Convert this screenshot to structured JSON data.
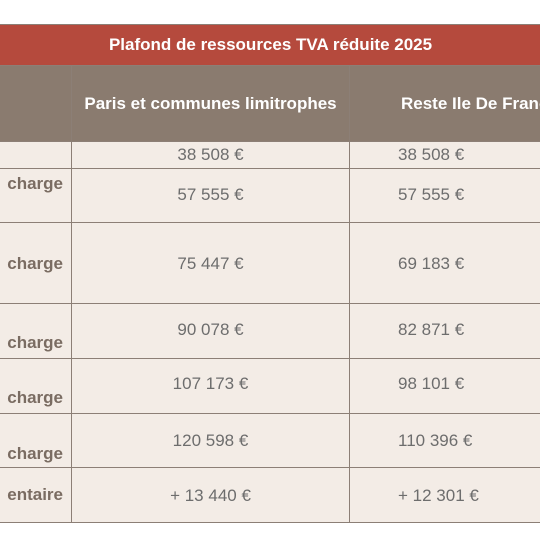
{
  "table": {
    "title": "Plafond de ressources TVA réduite 2025",
    "headers": [
      "",
      "Paris et communes limitrophes",
      "Reste Ile De France"
    ],
    "rows": [
      {
        "label": "",
        "paris": "38 508 €",
        "reste": "38 508 €"
      },
      {
        "label": "charge",
        "paris": "57 555 €",
        "reste": "57 555 €"
      },
      {
        "label": "charge",
        "paris": "75 447 €",
        "reste": "69 183 €"
      },
      {
        "label": "charge",
        "paris": "90 078 €",
        "reste": "82 871 €"
      },
      {
        "label": "charge",
        "paris": "107 173 €",
        "reste": "98 101 €"
      },
      {
        "label": "charge",
        "paris": "120 598 €",
        "reste": "110 396 €"
      },
      {
        "label": "entaire",
        "paris": "+ 13 440 €",
        "reste": "+ 12 301 €"
      }
    ]
  },
  "colors": {
    "title_bg": "#b54a3d",
    "header_bg": "#8a7b6f",
    "cell_bg": "#f3ece6",
    "border": "#8c7f76"
  }
}
